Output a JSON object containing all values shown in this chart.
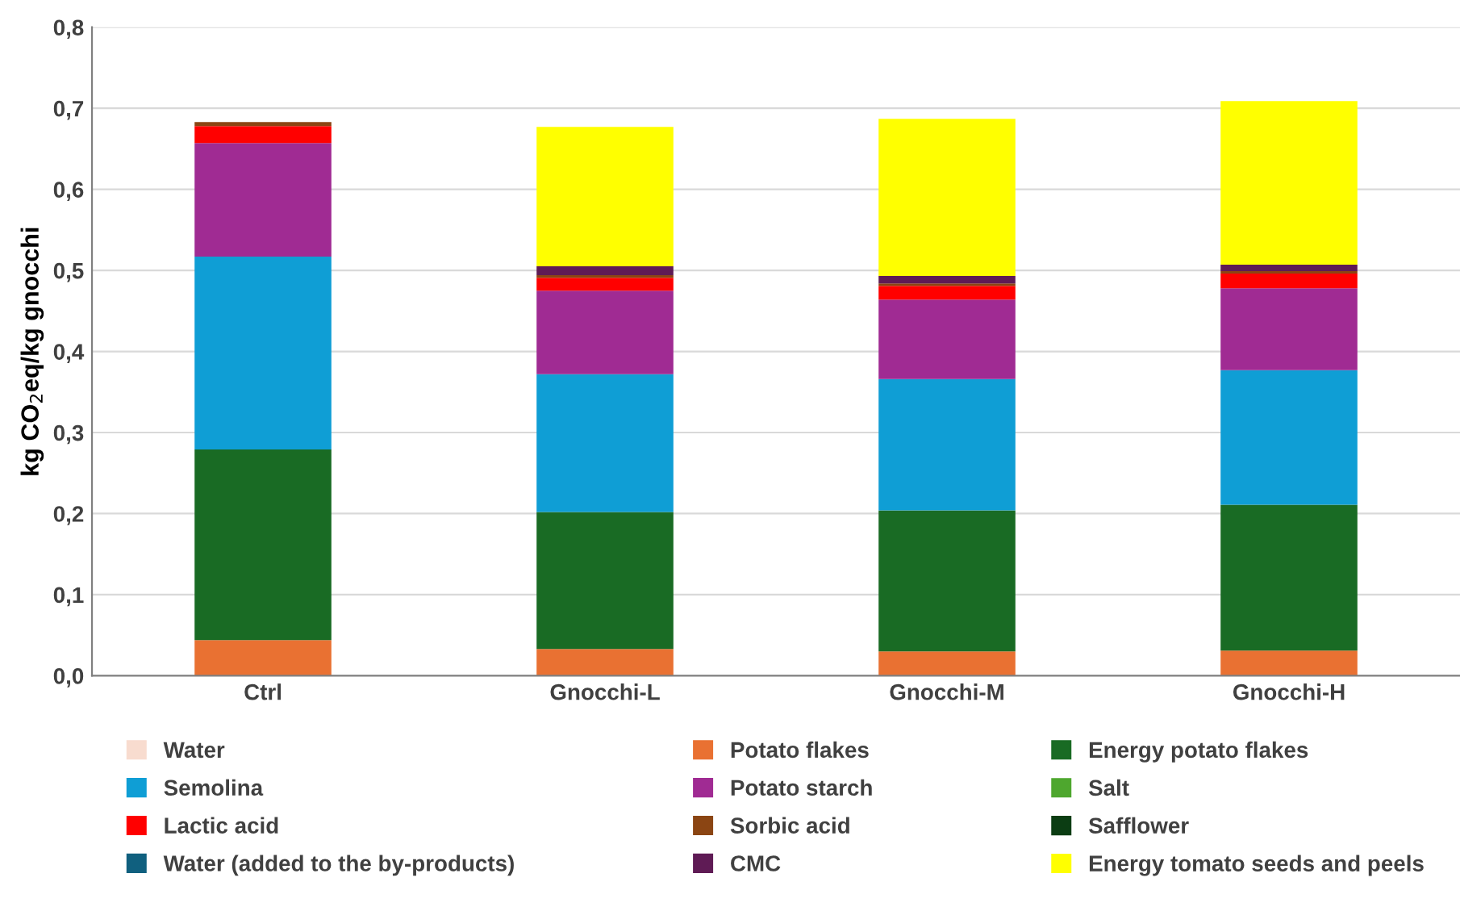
{
  "chart_data": {
    "type": "bar",
    "stacked": true,
    "ylabel": "kg CO$_{2}$eq/kg gnocchi",
    "categories": [
      "Ctrl",
      "Gnocchi-L",
      "Gnocchi-M",
      "Gnocchi-H"
    ],
    "series": [
      {
        "name": "Water",
        "color": "#f8dccf",
        "values": [
          0,
          0,
          0,
          0
        ]
      },
      {
        "name": "Potato flakes",
        "color": "#e97132",
        "values": [
          0.044,
          0.033,
          0.03,
          0.031
        ]
      },
      {
        "name": "Energy potato flakes",
        "color": "#196b24",
        "values": [
          0.235,
          0.169,
          0.174,
          0.18
        ]
      },
      {
        "name": "Semolina",
        "color": "#0f9ed5",
        "values": [
          0.238,
          0.17,
          0.162,
          0.166
        ]
      },
      {
        "name": "Potato starch",
        "color": "#a02b93",
        "values": [
          0.14,
          0.103,
          0.098,
          0.101
        ]
      },
      {
        "name": "Salt",
        "color": "#4ea72e",
        "values": [
          0,
          0,
          0,
          0
        ]
      },
      {
        "name": "Lactic acid",
        "color": "#ff0000",
        "values": [
          0.021,
          0.016,
          0.017,
          0.018
        ]
      },
      {
        "name": "Sorbic acid",
        "color": "#8b4513",
        "values": [
          0.005,
          0.003,
          0.003,
          0.003
        ]
      },
      {
        "name": "Safflower",
        "color": "#0b3d13",
        "values": [
          0,
          0,
          0,
          0
        ]
      },
      {
        "name": "Water (added to the by-products)",
        "color": "#10607f",
        "values": [
          0,
          0,
          0,
          0
        ]
      },
      {
        "name": "CMC",
        "color": "#5f1b55",
        "values": [
          0,
          0.011,
          0.009,
          0.008
        ]
      },
      {
        "name": "Energy tomato seeds and peels",
        "color": "#ffff00",
        "values": [
          0,
          0.172,
          0.194,
          0.202
        ]
      }
    ],
    "ylim": [
      0,
      0.8
    ],
    "yticks": [
      {
        "value": 0,
        "label": "0,0"
      },
      {
        "value": 0.1,
        "label": "0,1"
      },
      {
        "value": 0.2,
        "label": "0,2"
      },
      {
        "value": 0.3,
        "label": "0,3"
      },
      {
        "value": 0.4,
        "label": "0,4"
      },
      {
        "value": 0.5,
        "label": "0,5"
      },
      {
        "value": 0.6,
        "label": "0,6"
      },
      {
        "value": 0.7,
        "label": "0,7"
      },
      {
        "value": 0.8,
        "label": "0,8"
      }
    ],
    "grid": "y",
    "legend": "bottom"
  }
}
